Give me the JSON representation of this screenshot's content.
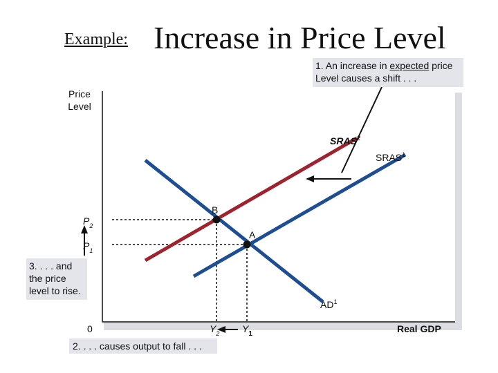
{
  "title": {
    "prefix": "Example:",
    "main": "Increase in Price Level"
  },
  "notes": {
    "n1_before": "1. An increase in ",
    "n1_underlined": "expected",
    "n1_after": " price",
    "n1_line2": "Level causes a shift . . .",
    "n2": "2. . . . causes output to fall . . .",
    "n3_line1": "3. . . . and",
    "n3_line2": "the price",
    "n3_line3": "level to rise."
  },
  "axes": {
    "y_line1": "Price",
    "y_line2": "Level",
    "x": "Real GDP",
    "origin": "0"
  },
  "curves": {
    "sras2_base": "SRAS",
    "sras2_sup": "2",
    "sras1_base": "SRAS",
    "sras1_sup": "1",
    "ad1_base": "AD",
    "ad1_sup": "1"
  },
  "points": {
    "b": "B",
    "a": "A"
  },
  "ticks": {
    "p2_base": "P",
    "p2_sub": "2",
    "p1_base": "P",
    "p1_sub": "1",
    "y2_base": "Y",
    "y2_sub": "2",
    "y1_base": "Y",
    "y1_sub": "1"
  },
  "colors": {
    "sras2": "#a0222e",
    "sras1": "#1d4e94",
    "ad": "#1d4e94",
    "note_bg": "#e3e5ea"
  },
  "chart_data": {
    "type": "line",
    "series": [
      {
        "name": "SRAS2",
        "x": [
          0.8,
          5.0
        ],
        "y": [
          0.8,
          5.45
        ]
      },
      {
        "name": "SRAS1",
        "x": [
          1.8,
          6.0
        ],
        "y": [
          0.6,
          5.25
        ]
      },
      {
        "name": "AD1",
        "x": [
          0.9,
          4.4
        ],
        "y": [
          4.6,
          0.6
        ]
      }
    ],
    "points": [
      {
        "label": "B",
        "x": 2.0,
        "y": 2.05
      },
      {
        "label": "A",
        "x": 2.75,
        "y": 1.6
      }
    ],
    "xlabel": "Real GDP",
    "ylabel": "Price Level",
    "xlim": [
      0,
      6.5
    ],
    "ylim": [
      0,
      6
    ],
    "grid": false
  }
}
